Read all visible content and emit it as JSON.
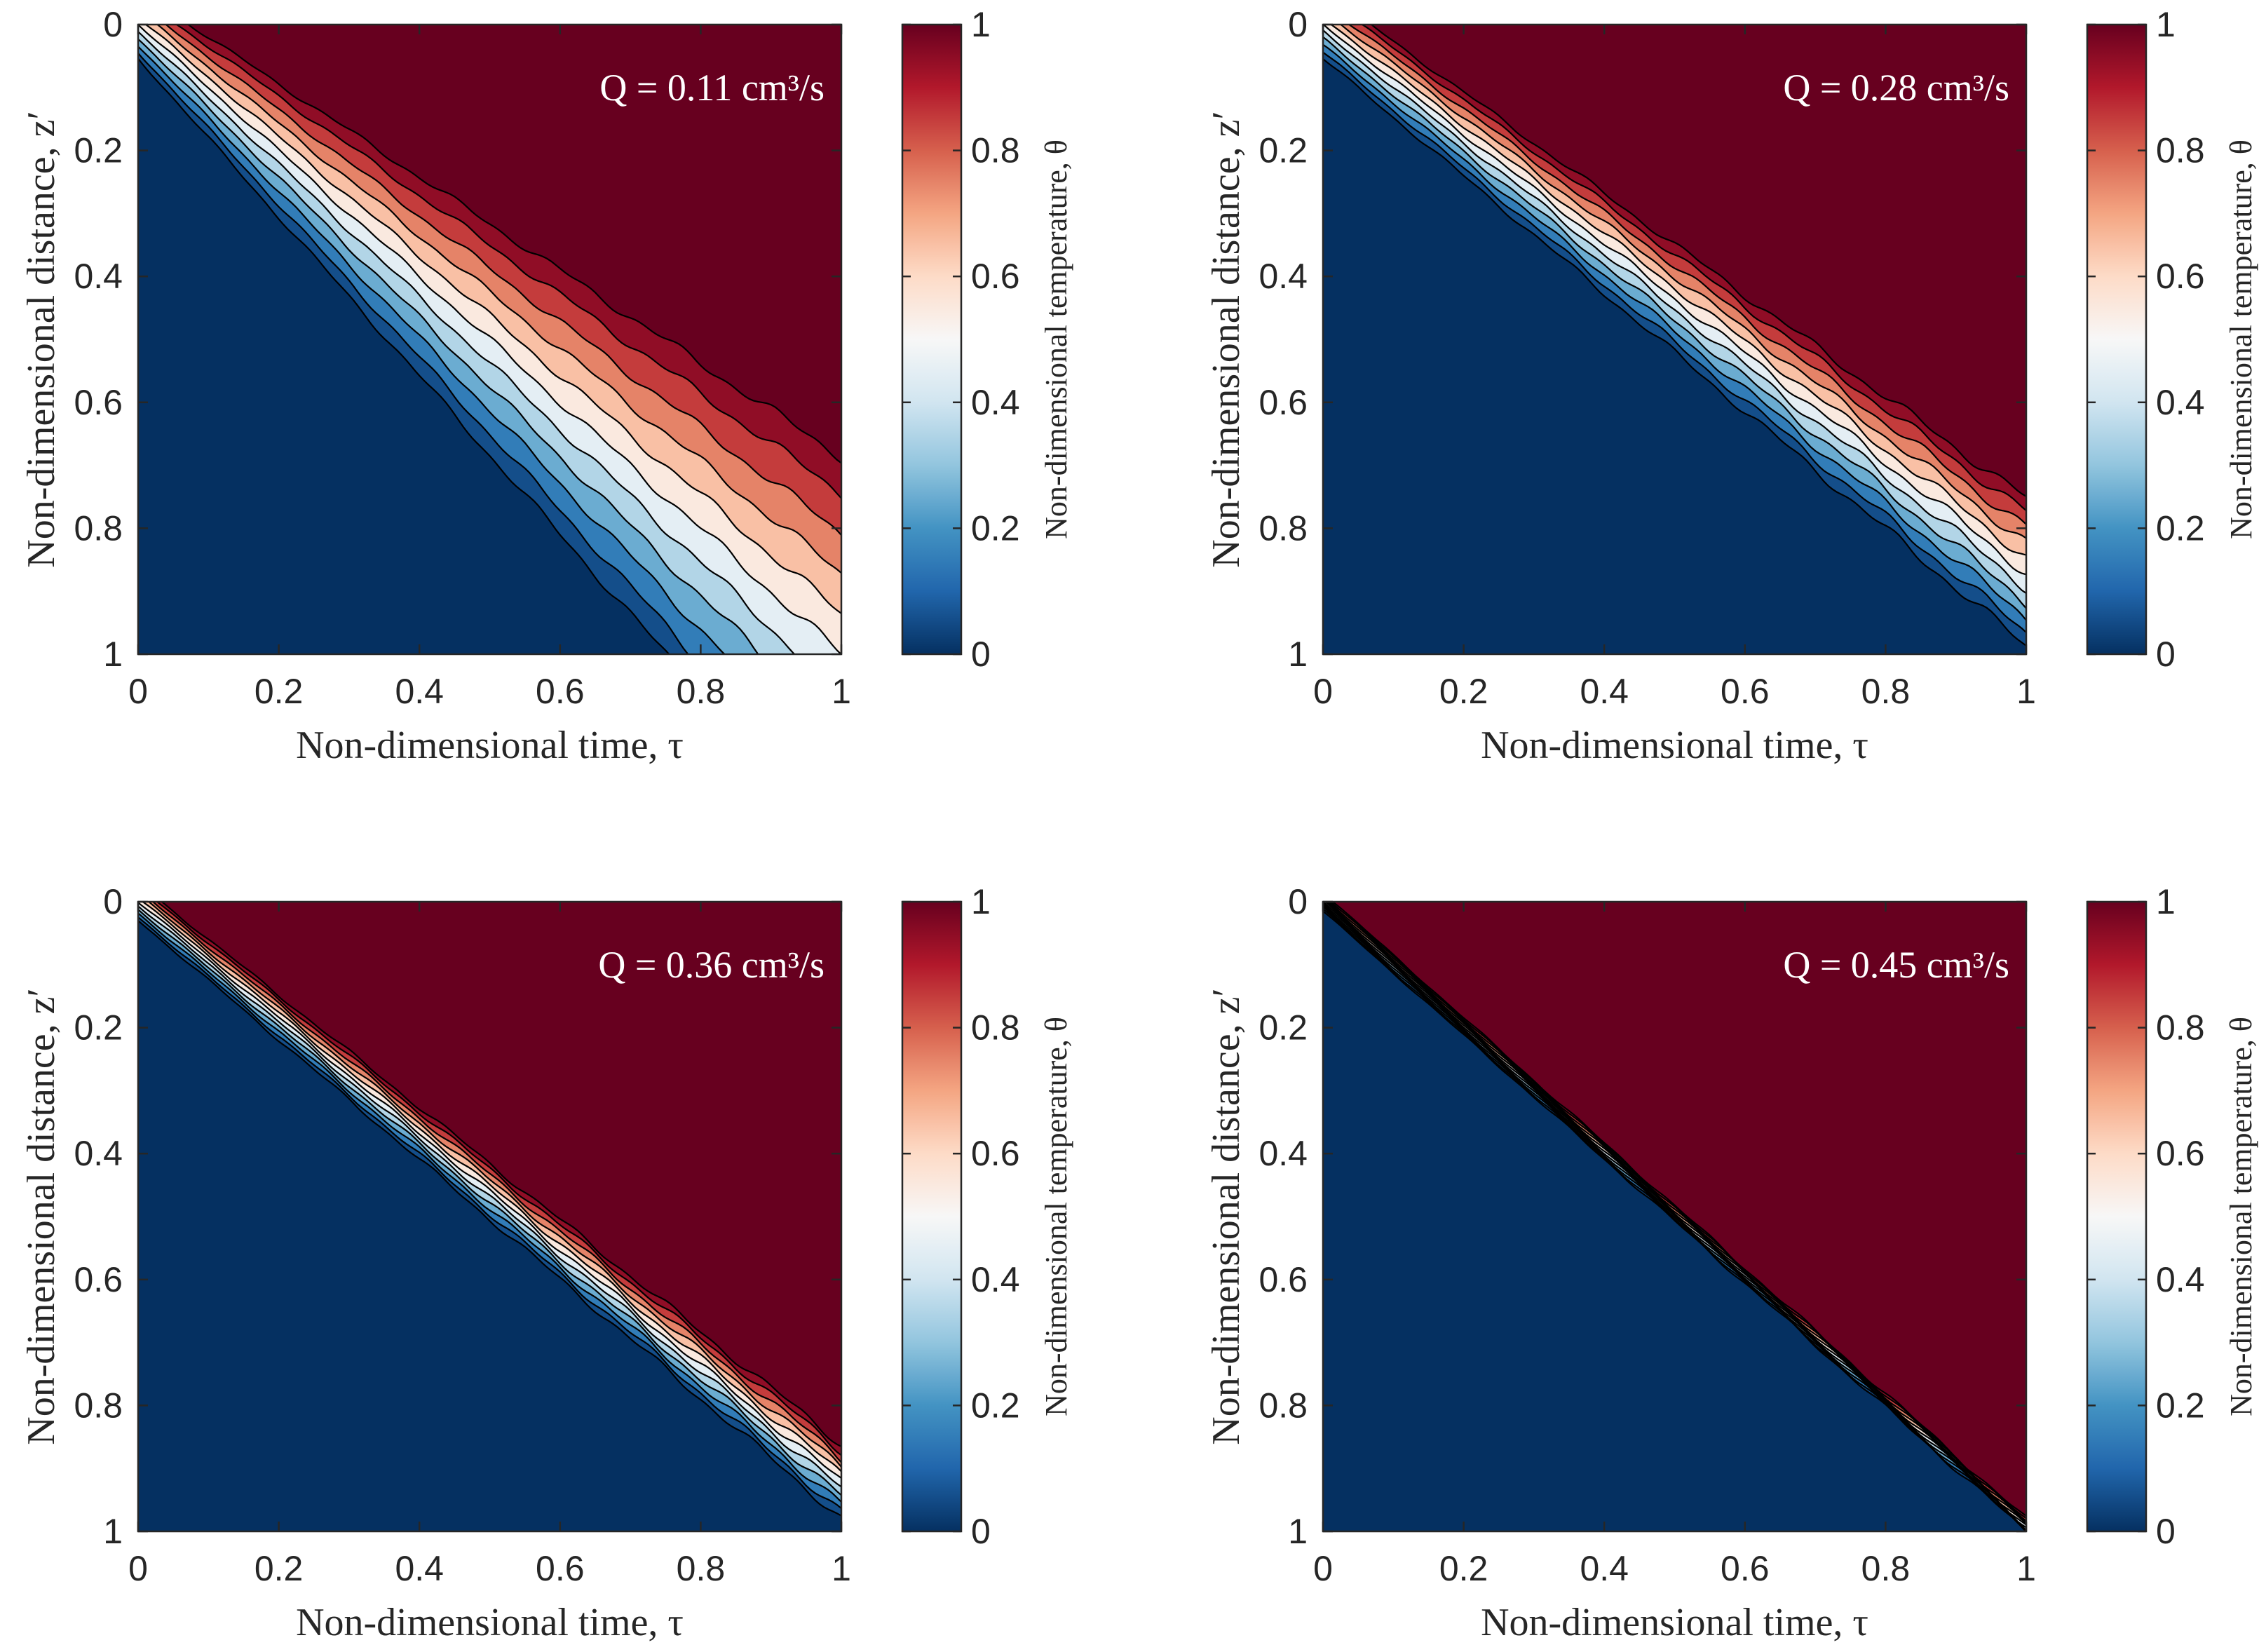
{
  "colors": {
    "stops": [
      "#053061",
      "#2166ac",
      "#4393c3",
      "#92c5de",
      "#d1e5f0",
      "#f7f7f7",
      "#fddbc7",
      "#f4a582",
      "#d6604d",
      "#b2182b",
      "#67001f"
    ],
    "contour_line": "#000000",
    "annotation_text": "#ffffff",
    "axis": "#262626"
  },
  "chart_data": [
    {
      "type": "contour",
      "annotation": "Q = 0.11 cm³/s",
      "xlabel": "Non-dimensional time, τ",
      "ylabel": "Non-dimensional distance, z′",
      "colorbar_label": "Non-dimensional temperature, θ",
      "xlim": [
        0,
        1
      ],
      "ylim": [
        0,
        1
      ],
      "y_reversed": true,
      "xticks": [
        "0",
        "0.2",
        "0.4",
        "0.6",
        "0.8",
        "1"
      ],
      "yticks": [
        "0",
        "0.2",
        "0.4",
        "0.6",
        "0.8",
        "1"
      ],
      "cticks": [
        "0",
        "0.2",
        "0.4",
        "0.6",
        "0.8",
        "1"
      ],
      "front_speed": 1.0,
      "spread_start": 0.11,
      "spread_end": 0.64,
      "spread_power": 1.0,
      "wobble": 0.008
    },
    {
      "type": "contour",
      "annotation": "Q = 0.28 cm³/s",
      "xlabel": "Non-dimensional time, τ",
      "ylabel": "Non-dimensional distance, z′",
      "colorbar_label": "Non-dimensional temperature, θ",
      "xlim": [
        0,
        1
      ],
      "ylim": [
        0,
        1
      ],
      "y_reversed": true,
      "xticks": [
        "0",
        "0.2",
        "0.4",
        "0.6",
        "0.8",
        "1"
      ],
      "yticks": [
        "0",
        "0.2",
        "0.4",
        "0.6",
        "0.8",
        "1"
      ],
      "cticks": [
        "0",
        "0.2",
        "0.4",
        "0.6",
        "0.8",
        "1"
      ],
      "front_speed": 0.87,
      "spread_start": 0.11,
      "spread_end": 0.24,
      "spread_power": 1.0,
      "wobble": 0.008
    },
    {
      "type": "contour",
      "annotation": "Q = 0.36 cm³/s",
      "xlabel": "Non-dimensional time, τ",
      "ylabel": "Non-dimensional distance, z′",
      "colorbar_label": "Non-dimensional temperature, θ",
      "xlim": [
        0,
        1
      ],
      "ylim": [
        0,
        1
      ],
      "y_reversed": true,
      "xticks": [
        "0",
        "0.2",
        "0.4",
        "0.6",
        "0.8",
        "1"
      ],
      "yticks": [
        "0",
        "0.2",
        "0.4",
        "0.6",
        "0.8",
        "1"
      ],
      "cticks": [
        "0",
        "0.2",
        "0.4",
        "0.6",
        "0.8",
        "1"
      ],
      "front_speed": 0.92,
      "spread_start": 0.06,
      "spread_end": 0.12,
      "spread_power": 1.0,
      "wobble": 0.006
    },
    {
      "type": "contour",
      "annotation": "Q = 0.45 cm³/s",
      "xlabel": "Non-dimensional time, τ",
      "ylabel": "Non-dimensional distance, z′",
      "colorbar_label": "Non-dimensional temperature, θ",
      "xlim": [
        0,
        1
      ],
      "ylim": [
        0,
        1
      ],
      "y_reversed": true,
      "xticks": [
        "0",
        "0.2",
        "0.4",
        "0.6",
        "0.8",
        "1"
      ],
      "yticks": [
        "0",
        "0.2",
        "0.4",
        "0.6",
        "0.8",
        "1"
      ],
      "cticks": [
        "0",
        "0.2",
        "0.4",
        "0.6",
        "0.8",
        "1"
      ],
      "front_speed": 0.99,
      "spread_start": 0.03,
      "spread_end": 0.02,
      "spread_power": 1.0,
      "wobble": 0.004
    }
  ]
}
